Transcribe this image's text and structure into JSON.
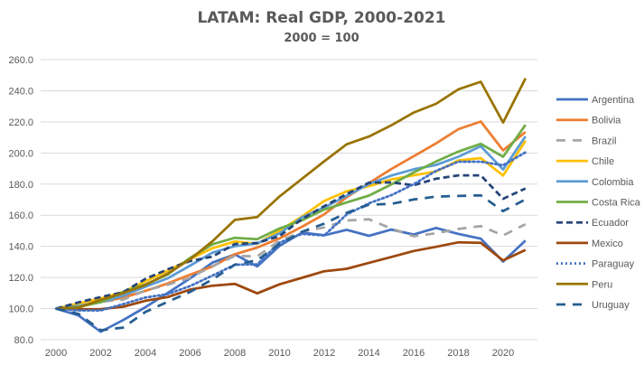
{
  "chart_data": {
    "type": "line",
    "title": "LATAM: Real GDP, 2000-2021",
    "subtitle": "2000 = 100",
    "xlabel": "",
    "ylabel": "",
    "x": [
      2000,
      2001,
      2002,
      2003,
      2004,
      2005,
      2006,
      2007,
      2008,
      2009,
      2010,
      2011,
      2012,
      2013,
      2014,
      2015,
      2016,
      2017,
      2018,
      2019,
      2020,
      2021
    ],
    "x_tick_labels": [
      "2000",
      "2002",
      "2004",
      "2006",
      "2008",
      "2010",
      "2012",
      "2014",
      "2016",
      "2018",
      "2020"
    ],
    "y_tick_labels": [
      "80.0",
      "100.0",
      "120.0",
      "140.0",
      "160.0",
      "180.0",
      "200.0",
      "220.0",
      "240.0",
      "260.0"
    ],
    "ylim": [
      80,
      260
    ],
    "grid": true,
    "legend_position": "right",
    "series": [
      {
        "name": "Argentina",
        "color": "#4472C4",
        "dash": "solid",
        "values": [
          100,
          95.6,
          85.1,
          92.6,
          100.9,
          110.1,
          119.4,
          129.6,
          134.8,
          127.1,
          140.3,
          148.8,
          147.1,
          150.6,
          146.8,
          150.8,
          147.6,
          151.8,
          148.0,
          144.9,
          130.2,
          143.7
        ]
      },
      {
        "name": "Bolivia",
        "color": "#ED7D31",
        "dash": "solid",
        "values": [
          100,
          101.7,
          104.2,
          107.0,
          111.4,
          116.2,
          121.8,
          127.1,
          134.9,
          139.2,
          145.1,
          152.6,
          160.6,
          171.5,
          180.7,
          189.7,
          197.9,
          206.2,
          215.3,
          220.2,
          201.7,
          213.5
        ]
      },
      {
        "name": "Brazil",
        "color": "#A5A5A5",
        "dash": "longdash",
        "values": [
          100,
          101.4,
          104.5,
          105.7,
          111.7,
          115.3,
          119.9,
          127.3,
          133.8,
          133.6,
          143.6,
          149.4,
          152.2,
          156.6,
          157.4,
          151.4,
          146.5,
          148.4,
          151.2,
          153.0,
          147.0,
          154.2
        ]
      },
      {
        "name": "Chile",
        "color": "#FFC000",
        "dash": "solid",
        "values": [
          100,
          103.3,
          106.5,
          110.7,
          117.5,
          124.4,
          131.8,
          138.8,
          143.1,
          141.6,
          150.1,
          159.2,
          169.2,
          175.4,
          178.7,
          183.0,
          185.7,
          188.1,
          195.2,
          196.7,
          185.5,
          207.8
        ]
      },
      {
        "name": "Colombia",
        "color": "#5B9BD5",
        "dash": "solid",
        "values": [
          100,
          101.7,
          104.2,
          108.2,
          114.0,
          119.5,
          127.6,
          136.0,
          140.1,
          141.9,
          148.3,
          158.6,
          165.0,
          172.5,
          180.1,
          185.5,
          189.5,
          192.3,
          197.6,
          204.3,
          189.4,
          210.7
        ]
      },
      {
        "name": "Costa Rica",
        "color": "#70AD47",
        "dash": "solid",
        "values": [
          100,
          101.1,
          104.1,
          110.7,
          115.5,
          121.9,
          132.6,
          141.4,
          145.5,
          144.6,
          151.5,
          156.7,
          163.7,
          168.2,
          172.6,
          179.8,
          187.5,
          194.5,
          200.9,
          205.9,
          197.6,
          218.1
        ]
      },
      {
        "name": "Ecuador",
        "color": "#264478",
        "dash": "dash",
        "values": [
          100,
          104.0,
          107.4,
          110.5,
          119.1,
          125.3,
          130.5,
          133.4,
          141.5,
          142.2,
          146.6,
          157.5,
          165.8,
          173.6,
          180.9,
          181.1,
          179.3,
          183.5,
          185.6,
          185.6,
          170.6,
          177.2
        ]
      },
      {
        "name": "Mexico",
        "color": "#9E480E",
        "dash": "solid",
        "values": [
          100,
          99.6,
          99.7,
          101.2,
          105.0,
          107.4,
          112.2,
          114.7,
          115.9,
          109.8,
          115.6,
          119.8,
          124.0,
          125.6,
          129.4,
          133.2,
          137.0,
          139.7,
          142.6,
          142.3,
          130.9,
          137.7
        ]
      },
      {
        "name": "Paraguay",
        "color": "#4472C4",
        "dash": "dot",
        "values": [
          100,
          98.8,
          98.8,
          102.9,
          107.1,
          109.3,
          114.5,
          121.2,
          128.2,
          128.4,
          142.4,
          148.0,
          147.0,
          160.5,
          167.7,
          172.9,
          179.9,
          188.5,
          194.4,
          194.4,
          192.1,
          200.4
        ]
      },
      {
        "name": "Peru",
        "color": "#997300",
        "dash": "solid",
        "values": [
          100,
          100.6,
          105.6,
          109.9,
          115.2,
          122.5,
          131.7,
          143.3,
          157.0,
          158.8,
          172.1,
          183.4,
          194.7,
          205.6,
          210.6,
          217.8,
          226.0,
          231.6,
          240.9,
          245.8,
          219.6,
          248.0
        ]
      },
      {
        "name": "Uruguay",
        "color": "#255E91",
        "dash": "longdash",
        "values": [
          100,
          96.6,
          86.1,
          87.8,
          97.8,
          104.4,
          110.7,
          118.8,
          128.2,
          131.1,
          141.5,
          149.3,
          154.6,
          161.5,
          166.8,
          167.3,
          170.1,
          172.0,
          172.4,
          172.8,
          162.6,
          170.2
        ]
      }
    ]
  }
}
